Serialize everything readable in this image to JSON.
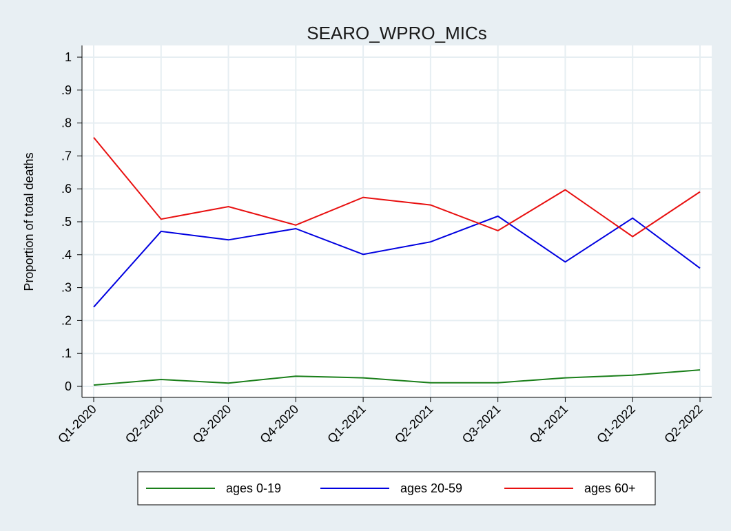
{
  "chart_data": {
    "type": "line",
    "title": "SEARO_WPRO_MICs",
    "xlabel": "",
    "ylabel": "Proportion of total deaths",
    "categories": [
      "Q1-2020",
      "Q2-2020",
      "Q3-2020",
      "Q4-2020",
      "Q1-2021",
      "Q2-2021",
      "Q3-2021",
      "Q4-2021",
      "Q1-2022",
      "Q2-2022"
    ],
    "ylim": [
      0,
      1
    ],
    "yticks": [
      0,
      0.1,
      0.2,
      0.3,
      0.4,
      0.5,
      0.6,
      0.7,
      0.8,
      0.9,
      1
    ],
    "ytick_labels": [
      "0",
      ".1",
      ".2",
      ".3",
      ".4",
      ".5",
      ".6",
      ".7",
      ".8",
      ".9",
      "1"
    ],
    "grid": true,
    "legend_position": "bottom",
    "series": [
      {
        "name": "ages 0-19",
        "color": "#1a7f1a",
        "values": [
          0.004,
          0.021,
          0.01,
          0.031,
          0.026,
          0.011,
          0.011,
          0.026,
          0.034,
          0.05
        ]
      },
      {
        "name": "ages 20-59",
        "color": "#0000e0",
        "values": [
          0.241,
          0.471,
          0.445,
          0.479,
          0.401,
          0.439,
          0.517,
          0.378,
          0.511,
          0.359
        ]
      },
      {
        "name": "ages 60+",
        "color": "#e81010",
        "values": [
          0.756,
          0.508,
          0.546,
          0.49,
          0.574,
          0.551,
          0.473,
          0.597,
          0.455,
          0.591
        ]
      }
    ]
  }
}
